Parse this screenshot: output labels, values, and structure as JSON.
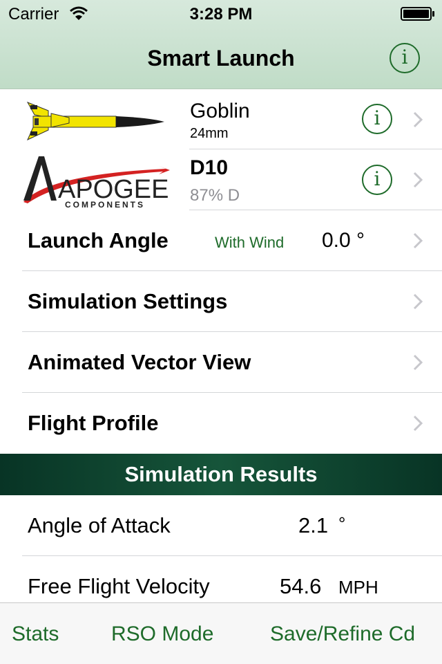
{
  "status_bar": {
    "carrier": "Carrier",
    "time": "3:28 PM"
  },
  "nav": {
    "title": "Smart Launch",
    "info_icon": "info-icon"
  },
  "rocket": {
    "name": "Goblin",
    "size": "24mm"
  },
  "motor": {
    "name": "D10",
    "detail": "87% D",
    "logo_text": "APOGEE",
    "logo_sub": "COMPONENTS"
  },
  "launch_angle": {
    "label": "Launch Angle",
    "mode": "With Wind",
    "value": "0.0 °"
  },
  "menu": {
    "simulation_settings": "Simulation Settings",
    "animated_vector_view": "Animated Vector View",
    "flight_profile": "Flight Profile"
  },
  "results": {
    "title": "Simulation Results",
    "angle_of_attack": {
      "label": "Angle of Attack",
      "value": "2.1",
      "unit": "°"
    },
    "free_flight_velocity": {
      "label": "Free Flight Velocity",
      "value": "54.6",
      "unit": "MPH"
    }
  },
  "tabs": {
    "stats": "Stats",
    "rso_mode": "RSO Mode",
    "save_refine": "Save/Refine Cd"
  },
  "colors": {
    "accent_green": "#1e6b2a",
    "header_bg": "#c8e0cf",
    "section_bg": "#0e4430",
    "rocket_yellow": "#f2e400"
  }
}
